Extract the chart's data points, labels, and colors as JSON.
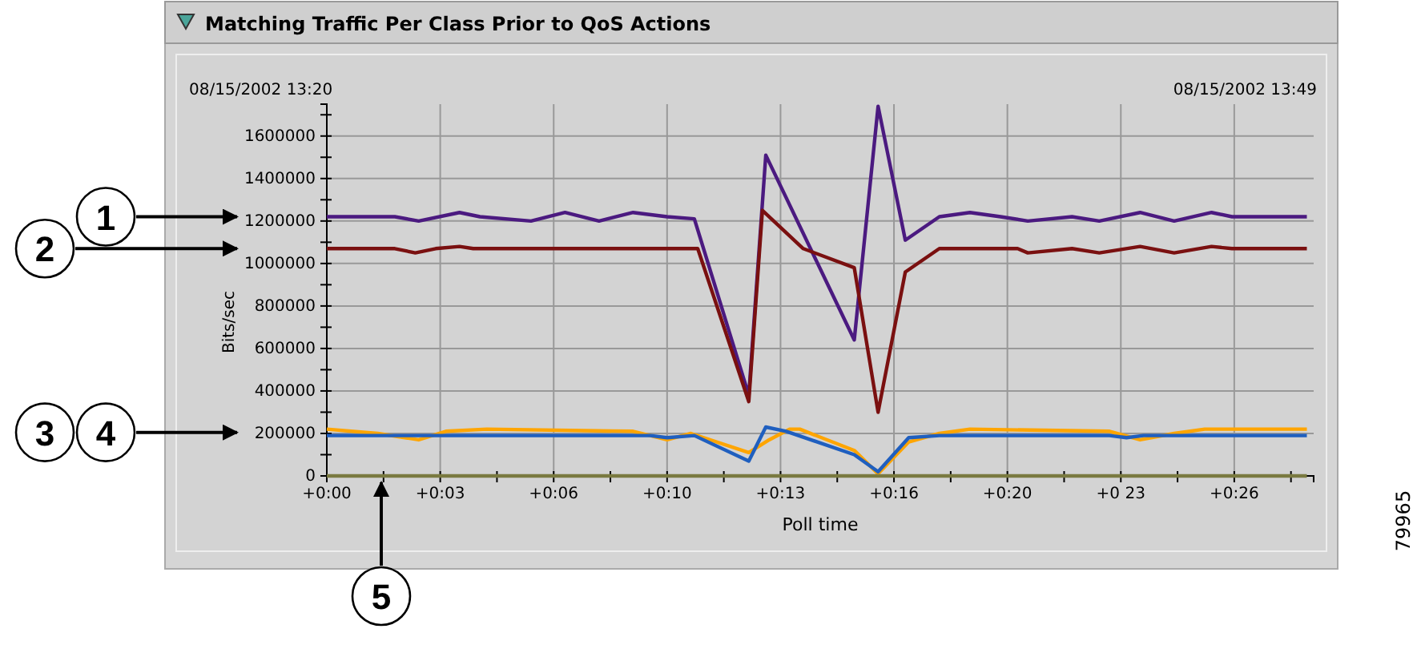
{
  "chart_data": {
    "type": "line",
    "title": "Matching Traffic Per Class Prior to QoS Actions",
    "xlabel": "Poll time",
    "ylabel": "Bits/sec",
    "annotations": [
      "08/15/2002 13:20",
      "08/15/2002 13:49",
      "79965",
      "1",
      "2",
      "3",
      "4",
      {
        "text": "5",
        "x": "2002-08-15T13:21:36",
        "y": 0
      }
    ],
    "xlim": [
      "2002-08-15T13:20:00",
      "2002-08-15T13:49:00"
    ],
    "xticks": [
      {
        "value": "2002-08-15T13:20:00",
        "label": "+0:00"
      },
      {
        "value": "2002-08-15T13:21:40",
        "label": null
      },
      {
        "value": "2002-08-15T13:23:20",
        "label": "+0:03"
      },
      {
        "value": "2002-08-15T13:25:00",
        "label": null
      },
      {
        "value": "2002-08-15T13:26:40",
        "label": "+0:06"
      },
      {
        "value": "2002-08-15T13:28:20",
        "label": null
      },
      {
        "value": "2002-08-15T13:30:00",
        "label": "+0:10"
      },
      {
        "value": "2002-08-15T13:31:40",
        "label": null
      },
      {
        "value": "2002-08-15T13:33:20",
        "label": "+0:13"
      },
      {
        "value": "2002-08-15T13:35:00",
        "label": null
      },
      {
        "value": "2002-08-15T13:36:40",
        "label": "+0:16"
      },
      {
        "value": "2002-08-15T13:38:20",
        "label": null
      },
      {
        "value": "2002-08-15T13:40:00",
        "label": "+0:20"
      },
      {
        "value": "2002-08-15T13:41:40",
        "label": null
      },
      {
        "value": "2002-08-15T13:43:20",
        "label": "+0 23"
      },
      {
        "value": "2002-08-15T13:45:00",
        "label": null
      },
      {
        "value": "2002-08-15T13:46:40",
        "label": "+0:26"
      },
      {
        "value": "2002-08-15T13:48:20",
        "label": null
      }
    ],
    "ylim": [
      0,
      1750000
    ],
    "yticks": [
      0,
      {
        "value": 100000,
        "label": null
      },
      200000,
      {
        "value": 300000,
        "label": null
      },
      400000,
      {
        "value": 500000,
        "label": null
      },
      600000,
      {
        "value": 700000,
        "label": null
      },
      800000,
      {
        "value": 900000,
        "label": null
      },
      1000000,
      {
        "value": 1100000,
        "label": null
      },
      1200000,
      {
        "value": 1300000,
        "label": null
      },
      1400000,
      {
        "value": 1500000,
        "label": null
      },
      1600000,
      {
        "value": 1700000,
        "label": null
      }
    ],
    "grid": true,
    "marker": "none",
    "line_style": "solid",
    "series": [
      {
        "color": "#4b1a80",
        "x": [
          "2002-08-15T13:20:00",
          "2002-08-15T13:22:00",
          "2002-08-15T13:22:42",
          "2002-08-15T13:23:54",
          "2002-08-15T13:24:30",
          "2002-08-15T13:26:00",
          "2002-08-15T13:27:00",
          "2002-08-15T13:28:00",
          "2002-08-15T13:29:00",
          "2002-08-15T13:30:00",
          "2002-08-15T13:30:48",
          "2002-08-15T13:32:24",
          "2002-08-15T13:32:54",
          "2002-08-15T13:35:30",
          "2002-08-15T13:36:12",
          "2002-08-15T13:37:00",
          "2002-08-15T13:38:00",
          "2002-08-15T13:38:54",
          "2002-08-15T13:39:48",
          "2002-08-15T13:40:36",
          "2002-08-15T13:41:54",
          "2002-08-15T13:42:42",
          "2002-08-15T13:43:54",
          "2002-08-15T13:44:54",
          "2002-08-15T13:46:00",
          "2002-08-15T13:46:36",
          "2002-08-15T13:48:48"
        ],
        "values": [
          1220000,
          1220000,
          1200000,
          1240000,
          1220000,
          1200000,
          1240000,
          1200000,
          1240000,
          1220000,
          1210000,
          380000,
          1510000,
          640000,
          1740000,
          1110000,
          1220000,
          1240000,
          1220000,
          1200000,
          1220000,
          1200000,
          1240000,
          1200000,
          1240000,
          1220000,
          1220000
        ]
      },
      {
        "color": "#7a1010",
        "x": [
          "2002-08-15T13:20:00",
          "2002-08-15T13:22:00",
          "2002-08-15T13:22:36",
          "2002-08-15T13:23:12",
          "2002-08-15T13:23:54",
          "2002-08-15T13:24:18",
          "2002-08-15T13:30:54",
          "2002-08-15T13:32:24",
          "2002-08-15T13:32:48",
          "2002-08-15T13:34:00",
          "2002-08-15T13:35:30",
          "2002-08-15T13:36:12",
          "2002-08-15T13:37:00",
          "2002-08-15T13:38:00",
          "2002-08-15T13:40:18",
          "2002-08-15T13:40:36",
          "2002-08-15T13:41:54",
          "2002-08-15T13:42:42",
          "2002-08-15T13:43:54",
          "2002-08-15T13:44:54",
          "2002-08-15T13:46:00",
          "2002-08-15T13:46:36",
          "2002-08-15T13:48:48"
        ],
        "values": [
          1070000,
          1070000,
          1050000,
          1070000,
          1080000,
          1070000,
          1070000,
          350000,
          1250000,
          1070000,
          980000,
          300000,
          960000,
          1070000,
          1070000,
          1050000,
          1070000,
          1050000,
          1080000,
          1050000,
          1080000,
          1070000,
          1070000
        ]
      },
      {
        "color": "#ffa500",
        "x": [
          "2002-08-15T13:20:00",
          "2002-08-15T13:21:30",
          "2002-08-15T13:22:42",
          "2002-08-15T13:23:30",
          "2002-08-15T13:24:42",
          "2002-08-15T13:29:00",
          "2002-08-15T13:30:00",
          "2002-08-15T13:30:42",
          "2002-08-15T13:32:24",
          "2002-08-15T13:33:00",
          "2002-08-15T13:33:36",
          "2002-08-15T13:33:54",
          "2002-08-15T13:35:30",
          "2002-08-15T13:36:12",
          "2002-08-15T13:37:06",
          "2002-08-15T13:38:00",
          "2002-08-15T13:38:54",
          "2002-08-15T13:43:00",
          "2002-08-15T13:43:54",
          "2002-08-15T13:44:54",
          "2002-08-15T13:45:48",
          "2002-08-15T13:48:48"
        ],
        "values": [
          220000,
          200000,
          170000,
          210000,
          220000,
          210000,
          170000,
          200000,
          110000,
          170000,
          220000,
          220000,
          120000,
          10000,
          160000,
          200000,
          220000,
          210000,
          170000,
          200000,
          220000,
          220000
        ]
      },
      {
        "color": "#1f5fbf",
        "x": [
          "2002-08-15T13:20:00",
          "2002-08-15T13:29:30",
          "2002-08-15T13:30:00",
          "2002-08-15T13:30:48",
          "2002-08-15T13:32:24",
          "2002-08-15T13:32:54",
          "2002-08-15T13:33:30",
          "2002-08-15T13:35:30",
          "2002-08-15T13:36:12",
          "2002-08-15T13:37:06",
          "2002-08-15T13:38:00",
          "2002-08-15T13:43:00",
          "2002-08-15T13:43:30",
          "2002-08-15T13:44:00",
          "2002-08-15T13:48:48"
        ],
        "values": [
          190000,
          190000,
          180000,
          190000,
          70000,
          230000,
          210000,
          100000,
          20000,
          180000,
          190000,
          190000,
          180000,
          190000,
          190000
        ]
      },
      {
        "color": "#7a7a40",
        "x": [
          "2002-08-15T13:20:00",
          "2002-08-15T13:48:48"
        ],
        "values": [
          0,
          0
        ]
      }
    ]
  }
}
